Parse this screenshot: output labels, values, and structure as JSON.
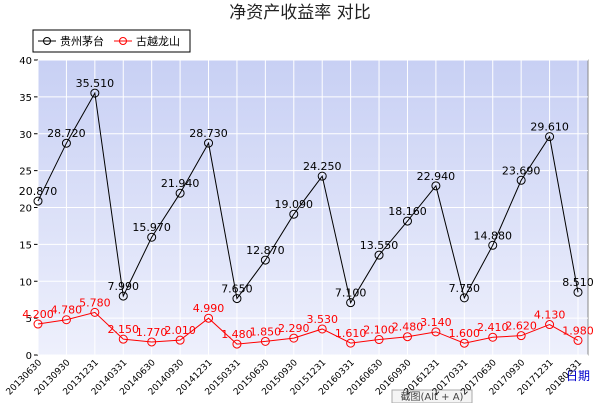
{
  "chart_data": {
    "type": "line",
    "title": "净资产收益率 对比",
    "x_label": "日期",
    "categories": [
      "20130630",
      "20130930",
      "20131231",
      "20140331",
      "20140630",
      "20140930",
      "20141231",
      "20150331",
      "20150630",
      "20150930",
      "20151231",
      "20160331",
      "20160630",
      "20160930",
      "20161231",
      "20170331",
      "20170630",
      "20170930",
      "20171231",
      "20180331"
    ],
    "series": [
      {
        "name": "贵州茅台",
        "color": "#000000",
        "values": [
          20.87,
          28.72,
          35.51,
          7.99,
          15.97,
          21.94,
          28.73,
          7.65,
          12.87,
          19.09,
          24.25,
          7.1,
          13.55,
          18.16,
          22.94,
          7.75,
          14.88,
          23.69,
          29.61,
          8.51
        ],
        "value_labels": [
          "20.870",
          "28.720",
          "35.510",
          "7.990",
          "15.970",
          "21.940",
          "28.730",
          "7.650",
          "12.870",
          "19.090",
          "24.250",
          "7.100",
          "13.550",
          "18.160",
          "22.940",
          "7.750",
          "14.880",
          "23.690",
          "29.610",
          "8.510"
        ]
      },
      {
        "name": "古越龙山",
        "color": "#ff0000",
        "values": [
          4.2,
          4.78,
          5.78,
          2.15,
          1.77,
          2.01,
          4.99,
          1.48,
          1.85,
          2.29,
          3.53,
          1.61,
          2.1,
          2.48,
          3.14,
          1.6,
          2.41,
          2.62,
          4.13,
          1.98
        ],
        "value_labels": [
          "4.200",
          "4.780",
          "5.780",
          "2.150",
          "1.770",
          "2.010",
          "4.990",
          "1.480",
          "1.850",
          "2.290",
          "3.530",
          "1.610",
          "2.100",
          "2.480",
          "3.140",
          "1.600",
          "2.410",
          "2.620",
          "4.130",
          "1.980"
        ]
      }
    ],
    "ylim": [
      0,
      40
    ],
    "yticks": [
      0,
      5,
      10,
      15,
      20,
      25,
      30,
      35,
      40
    ],
    "grid": true,
    "legend": "top-left",
    "tooltip": "截图(Alt + A)"
  }
}
